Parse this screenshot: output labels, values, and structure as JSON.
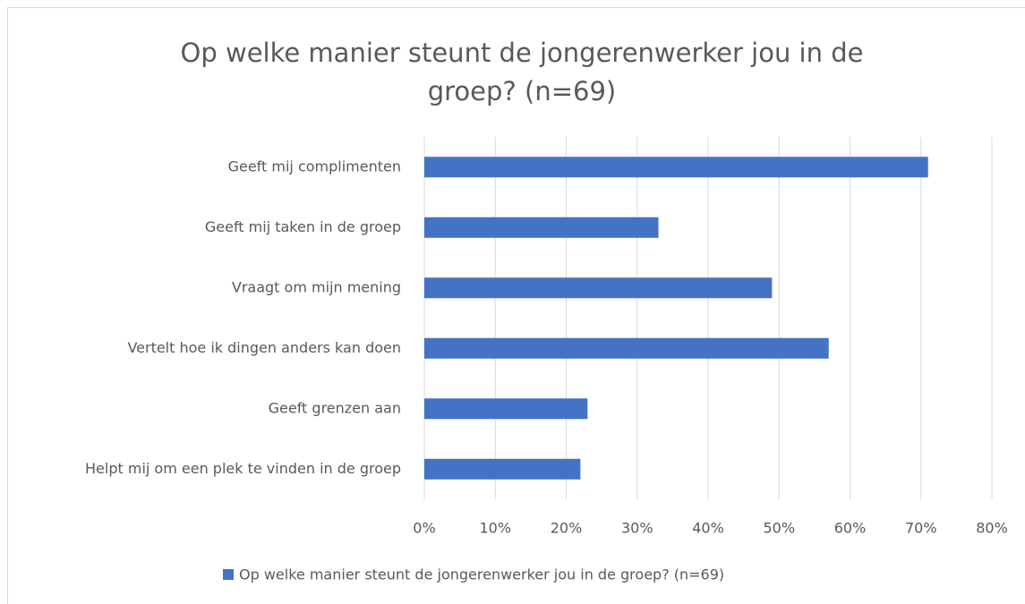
{
  "chart_data": {
    "type": "barh",
    "title": "Op welke manier steunt de jongerenwerker jou in de groep? (n=69)",
    "categories": [
      "Geeft mij complimenten",
      "Geeft mij taken in de groep",
      "Vraagt om mijn mening",
      "Vertelt hoe ik dingen anders kan doen",
      "Geeft grenzen aan",
      "Helpt mij om een plek te vinden in de groep"
    ],
    "series": [
      {
        "name": "Op welke manier steunt de jongerenwerker jou in de groep? (n=69)",
        "color": "#4472c4",
        "values": [
          71,
          33,
          49,
          57,
          23,
          22
        ]
      }
    ],
    "xlim": [
      0,
      80
    ],
    "xticks": [
      {
        "value": 0,
        "label": "0%"
      },
      {
        "value": 10,
        "label": "10%"
      },
      {
        "value": 20,
        "label": "20%"
      },
      {
        "value": 30,
        "label": "30%"
      },
      {
        "value": 40,
        "label": "40%"
      },
      {
        "value": 50,
        "label": "50%"
      },
      {
        "value": 60,
        "label": "60%"
      },
      {
        "value": 70,
        "label": "70%"
      },
      {
        "value": 80,
        "label": "80%"
      }
    ],
    "grid": true,
    "legend": "bottom"
  }
}
